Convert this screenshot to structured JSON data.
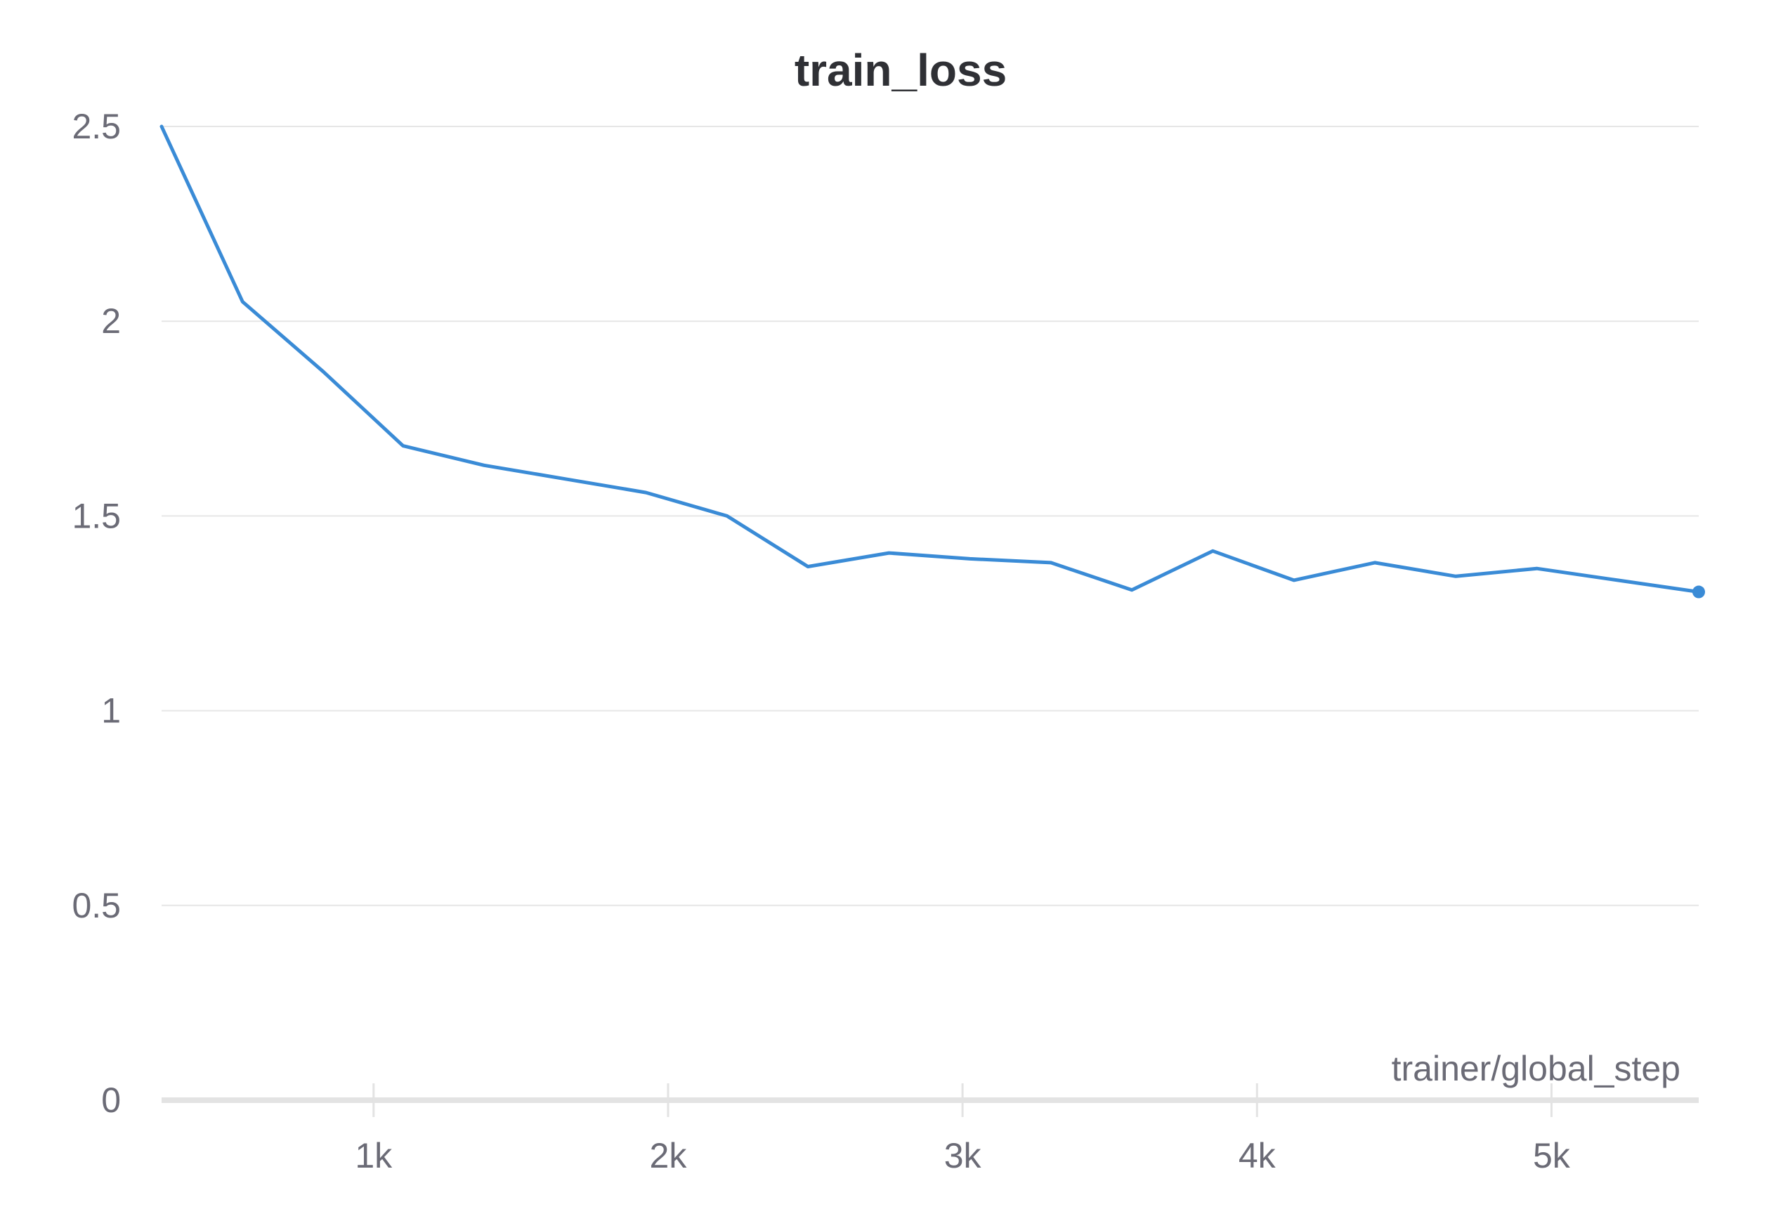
{
  "chart_data": {
    "type": "line",
    "title": "train_loss",
    "xlabel": "trainer/global_step",
    "ylabel": "",
    "xlim": [
      280,
      5500
    ],
    "ylim": [
      0,
      2.5
    ],
    "x_ticks": [
      {
        "value": 1000,
        "label": "1k"
      },
      {
        "value": 2000,
        "label": "2k"
      },
      {
        "value": 3000,
        "label": "3k"
      },
      {
        "value": 4000,
        "label": "4k"
      },
      {
        "value": 5000,
        "label": "5k"
      }
    ],
    "y_ticks": [
      {
        "value": 0,
        "label": "0"
      },
      {
        "value": 0.5,
        "label": "0.5"
      },
      {
        "value": 1,
        "label": "1"
      },
      {
        "value": 1.5,
        "label": "1.5"
      },
      {
        "value": 2,
        "label": "2"
      },
      {
        "value": 2.5,
        "label": "2.5"
      }
    ],
    "grid": true,
    "legend": "none",
    "series": [
      {
        "color": "#3a8bd6",
        "points": [
          {
            "x": 280,
            "y": 2.5
          },
          {
            "x": 555,
            "y": 2.05
          },
          {
            "x": 830,
            "y": 1.87
          },
          {
            "x": 1100,
            "y": 1.68
          },
          {
            "x": 1375,
            "y": 1.63
          },
          {
            "x": 1650,
            "y": 1.595
          },
          {
            "x": 1925,
            "y": 1.56
          },
          {
            "x": 2200,
            "y": 1.5
          },
          {
            "x": 2475,
            "y": 1.37
          },
          {
            "x": 2750,
            "y": 1.405
          },
          {
            "x": 3025,
            "y": 1.39
          },
          {
            "x": 3300,
            "y": 1.38
          },
          {
            "x": 3575,
            "y": 1.31
          },
          {
            "x": 3850,
            "y": 1.41
          },
          {
            "x": 4125,
            "y": 1.335
          },
          {
            "x": 4400,
            "y": 1.38
          },
          {
            "x": 4675,
            "y": 1.345
          },
          {
            "x": 4950,
            "y": 1.365
          },
          {
            "x": 5225,
            "y": 1.335
          },
          {
            "x": 5500,
            "y": 1.305
          }
        ]
      }
    ],
    "colors": {
      "line": "#3a8bd6",
      "grid": "#e6e6e6",
      "axis": "#e3e3e3",
      "tick_text": "#6b6b76",
      "title": "#2f3035"
    }
  }
}
